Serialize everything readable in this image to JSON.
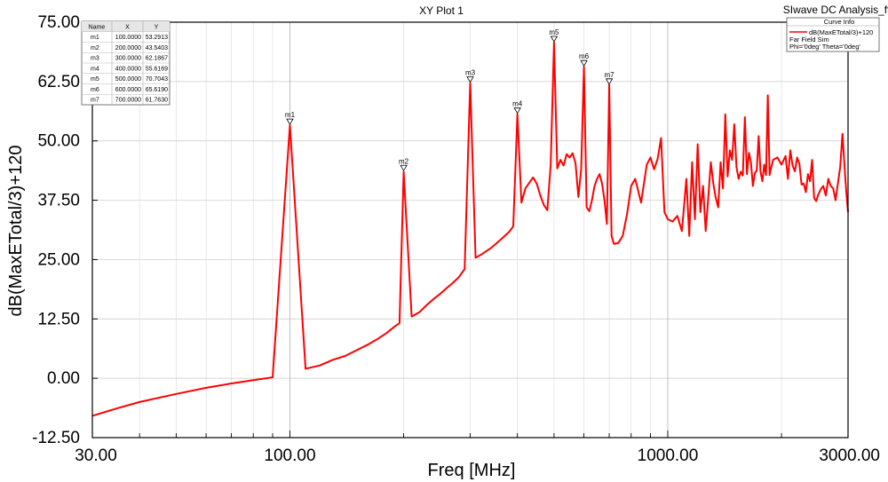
{
  "header": {
    "title": "XY Plot 1",
    "analysis": "SIwave DC Analysis_ff"
  },
  "legend": {
    "title": "Curve Info",
    "entry": "dB(MaxETotal/3)+120",
    "line2": "Far Field Sim",
    "line3": "Phi='0deg' Theta='0deg'"
  },
  "marker_table": {
    "headers": [
      "Name",
      "X",
      "Y"
    ],
    "rows": [
      [
        "m1",
        "100.0000",
        "53.2913"
      ],
      [
        "m2",
        "200.0000",
        "43.5403"
      ],
      [
        "m3",
        "300.0000",
        "62.1867"
      ],
      [
        "m4",
        "400.0000",
        "55.6169"
      ],
      [
        "m5",
        "500.0000",
        "70.7043"
      ],
      [
        "m6",
        "600.0000",
        "65.6190"
      ],
      [
        "m7",
        "700.0000",
        "61.7630"
      ]
    ]
  },
  "chart_data": {
    "type": "line",
    "title": "XY Plot 1",
    "xlabel": "Freq [MHz]",
    "ylabel": "dB(MaxETotal/3)+120",
    "x_scale": "log",
    "xlim": [
      30,
      3000
    ],
    "ylim": [
      -12.5,
      75
    ],
    "x_ticks": [
      {
        "value": 30,
        "label": "30.00"
      },
      {
        "value": 100,
        "label": "100.00"
      },
      {
        "value": 1000,
        "label": "1000.00"
      },
      {
        "value": 3000,
        "label": "3000.00"
      }
    ],
    "y_ticks": [
      {
        "value": -12.5,
        "label": "-12.50"
      },
      {
        "value": 0,
        "label": "0.00"
      },
      {
        "value": 12.5,
        "label": "12.50"
      },
      {
        "value": 25,
        "label": "25.00"
      },
      {
        "value": 37.5,
        "label": "37.50"
      },
      {
        "value": 50,
        "label": "50.00"
      },
      {
        "value": 62.5,
        "label": "62.50"
      },
      {
        "value": 75,
        "label": "75.00"
      }
    ],
    "grid": true,
    "legend_position": "top-right",
    "line_color": "#ff0000",
    "series": [
      {
        "name": "dB(MaxETotal/3)+120",
        "points": [
          [
            30,
            -7.9
          ],
          [
            35,
            -6.3
          ],
          [
            40,
            -5.0
          ],
          [
            50,
            -3.3
          ],
          [
            60,
            -2.0
          ],
          [
            70,
            -1.1
          ],
          [
            80,
            -0.4
          ],
          [
            90,
            0.2
          ],
          [
            100,
            53.3
          ],
          [
            110,
            2.0
          ],
          [
            120,
            2.7
          ],
          [
            130,
            3.9
          ],
          [
            140,
            4.7
          ],
          [
            150,
            5.9
          ],
          [
            160,
            7.0
          ],
          [
            170,
            8.2
          ],
          [
            180,
            9.5
          ],
          [
            190,
            11.0
          ],
          [
            195,
            11.6
          ],
          [
            200,
            43.5
          ],
          [
            210,
            13.0
          ],
          [
            220,
            13.9
          ],
          [
            230,
            15.4
          ],
          [
            240,
            16.7
          ],
          [
            250,
            17.8
          ],
          [
            260,
            19.0
          ],
          [
            270,
            20.1
          ],
          [
            280,
            21.3
          ],
          [
            290,
            23.0
          ],
          [
            300,
            62.2
          ],
          [
            310,
            25.4
          ],
          [
            320,
            26.0
          ],
          [
            340,
            27.4
          ],
          [
            360,
            29.1
          ],
          [
            380,
            30.8
          ],
          [
            390,
            32.0
          ],
          [
            400,
            55.6
          ],
          [
            410,
            37.0
          ],
          [
            420,
            40.0
          ],
          [
            440,
            42.3
          ],
          [
            450,
            41.0
          ],
          [
            460,
            38.5
          ],
          [
            470,
            36.5
          ],
          [
            480,
            35.4
          ],
          [
            490,
            45.0
          ],
          [
            500,
            70.7
          ],
          [
            510,
            44.2
          ],
          [
            520,
            46.0
          ],
          [
            530,
            44.8
          ],
          [
            540,
            47.2
          ],
          [
            550,
            46.5
          ],
          [
            560,
            47.4
          ],
          [
            570,
            45.3
          ],
          [
            580,
            38.2
          ],
          [
            590,
            44.0
          ],
          [
            600,
            65.6
          ],
          [
            610,
            36.0
          ],
          [
            620,
            35.2
          ],
          [
            630,
            37.5
          ],
          [
            640,
            40.5
          ],
          [
            650,
            42.0
          ],
          [
            660,
            43.0
          ],
          [
            670,
            41.0
          ],
          [
            680,
            37.5
          ],
          [
            690,
            32.5
          ],
          [
            700,
            61.8
          ],
          [
            710,
            30.0
          ],
          [
            720,
            28.3
          ],
          [
            740,
            28.5
          ],
          [
            760,
            30.0
          ],
          [
            780,
            34.5
          ],
          [
            800,
            40.5
          ],
          [
            820,
            42.0
          ],
          [
            850,
            37.0
          ],
          [
            880,
            45.0
          ],
          [
            900,
            46.5
          ],
          [
            920,
            44.0
          ],
          [
            940,
            46.2
          ],
          [
            960,
            50.6
          ],
          [
            980,
            35.0
          ],
          [
            1000,
            33.5
          ],
          [
            1030,
            33.0
          ],
          [
            1060,
            34.2
          ],
          [
            1090,
            31.0
          ],
          [
            1120,
            42.0
          ],
          [
            1140,
            30.0
          ],
          [
            1160,
            45.5
          ],
          [
            1180,
            33.5
          ],
          [
            1200,
            49.3
          ],
          [
            1220,
            35.0
          ],
          [
            1240,
            40.5
          ],
          [
            1260,
            31.0
          ],
          [
            1280,
            38.0
          ],
          [
            1300,
            45.5
          ],
          [
            1320,
            41.0
          ],
          [
            1340,
            38.0
          ],
          [
            1360,
            36.0
          ],
          [
            1380,
            45.5
          ],
          [
            1400,
            40.0
          ],
          [
            1420,
            55.6
          ],
          [
            1440,
            42.5
          ],
          [
            1460,
            48.0
          ],
          [
            1480,
            46.0
          ],
          [
            1500,
            53.5
          ],
          [
            1520,
            44.5
          ],
          [
            1540,
            42.0
          ],
          [
            1560,
            43.5
          ],
          [
            1580,
            42.7
          ],
          [
            1600,
            55.0
          ],
          [
            1620,
            43.0
          ],
          [
            1640,
            47.5
          ],
          [
            1660,
            45.5
          ],
          [
            1680,
            40.5
          ],
          [
            1700,
            43.2
          ],
          [
            1720,
            43.8
          ],
          [
            1740,
            51.0
          ],
          [
            1760,
            43.5
          ],
          [
            1780,
            41.5
          ],
          [
            1800,
            45.0
          ],
          [
            1820,
            42.8
          ],
          [
            1840,
            59.6
          ],
          [
            1860,
            42.8
          ],
          [
            1880,
            44.5
          ],
          [
            1900,
            46.0
          ],
          [
            1950,
            46.5
          ],
          [
            2000,
            45.0
          ],
          [
            2050,
            46.8
          ],
          [
            2080,
            42.0
          ],
          [
            2110,
            48.0
          ],
          [
            2140,
            44.8
          ],
          [
            2170,
            43.6
          ],
          [
            2200,
            46.5
          ],
          [
            2230,
            45.2
          ],
          [
            2260,
            40.8
          ],
          [
            2290,
            41.0
          ],
          [
            2320,
            39.2
          ],
          [
            2350,
            43.0
          ],
          [
            2380,
            41.5
          ],
          [
            2410,
            46.0
          ],
          [
            2440,
            38.0
          ],
          [
            2470,
            37.3
          ],
          [
            2500,
            38.6
          ],
          [
            2540,
            39.8
          ],
          [
            2580,
            40.5
          ],
          [
            2620,
            38.5
          ],
          [
            2660,
            42.0
          ],
          [
            2700,
            40.5
          ],
          [
            2740,
            40.0
          ],
          [
            2780,
            37.5
          ],
          [
            2820,
            41.0
          ],
          [
            2860,
            44.5
          ],
          [
            2900,
            51.5
          ],
          [
            2940,
            44.0
          ],
          [
            2970,
            39.0
          ],
          [
            3000,
            35.0
          ]
        ]
      }
    ],
    "markers": [
      {
        "name": "m1",
        "x": 100,
        "y": 53.2913
      },
      {
        "name": "m2",
        "x": 200,
        "y": 43.5403
      },
      {
        "name": "m3",
        "x": 300,
        "y": 62.1867
      },
      {
        "name": "m4",
        "x": 400,
        "y": 55.6169
      },
      {
        "name": "m5",
        "x": 500,
        "y": 70.7043
      },
      {
        "name": "m6",
        "x": 600,
        "y": 65.619
      },
      {
        "name": "m7",
        "x": 700,
        "y": 61.763
      }
    ]
  }
}
